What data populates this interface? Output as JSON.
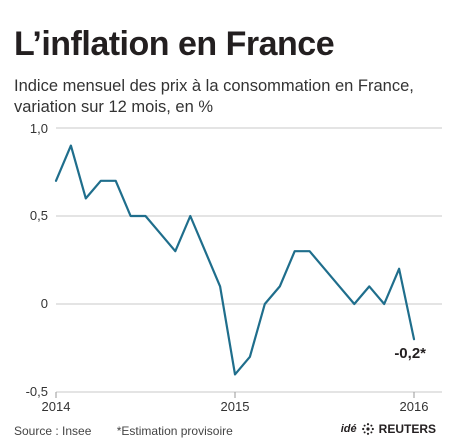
{
  "header": {
    "title": "L’inflation en France",
    "subtitle_line1": "Indice mensuel des prix à la consommation en France,",
    "subtitle_line2": "variation sur 12 mois, en %"
  },
  "footer": {
    "source": "Source : Insee",
    "note": "*Estimation provisoire",
    "credit": "idé",
    "brand": "REUTERS"
  },
  "chart_data": {
    "type": "line",
    "title": "L’inflation en France",
    "subtitle": "Indice mensuel des prix à la consommation en France, variation sur 12 mois, en %",
    "xlabel": "",
    "ylabel": "",
    "x_ticks": [
      "2014",
      "2015",
      "2016"
    ],
    "y_ticks": [
      "1,0",
      "0,5",
      "0",
      "-0,5"
    ],
    "y_tick_values": [
      1.0,
      0.5,
      0,
      -0.5
    ],
    "ylim": [
      -0.5,
      1.0
    ],
    "grid": true,
    "x_start": "2014-01",
    "x_end": "2016-01",
    "series": [
      {
        "x": [
          "2014-01",
          "2014-02",
          "2014-03",
          "2014-04",
          "2014-05",
          "2014-06",
          "2014-07",
          "2014-08",
          "2014-09",
          "2014-10",
          "2014-11",
          "2014-12",
          "2015-01",
          "2015-02",
          "2015-03",
          "2015-04",
          "2015-05",
          "2015-06",
          "2015-07",
          "2015-08",
          "2015-09",
          "2015-10",
          "2015-11",
          "2015-12",
          "2016-01"
        ],
        "values": [
          0.7,
          0.9,
          0.6,
          0.7,
          0.7,
          0.5,
          0.5,
          0.4,
          0.3,
          0.5,
          0.3,
          0.1,
          -0.4,
          -0.3,
          0.0,
          0.1,
          0.3,
          0.3,
          0.2,
          0.1,
          0.0,
          0.1,
          0.0,
          0.2,
          -0.2
        ],
        "color": "#1f6e8c"
      }
    ],
    "annotations": [
      {
        "x": "2016-01",
        "y": -0.2,
        "text": "-0,2*"
      }
    ]
  }
}
